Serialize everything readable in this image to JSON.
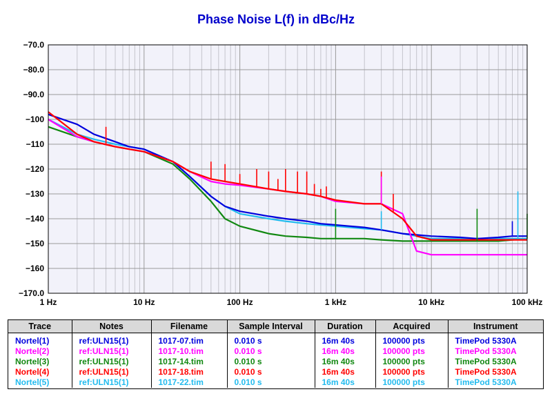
{
  "chart_data": {
    "type": "line",
    "title": "Phase Noise L(f) in dBc/Hz",
    "xscale": "log",
    "xlim": [
      1,
      100000
    ],
    "ylim": [
      -170,
      -70
    ],
    "yticks": [
      -70,
      -80,
      -90,
      -100,
      -110,
      -120,
      -130,
      -140,
      -150,
      -160,
      -170
    ],
    "ytick_labels": [
      "−70.0",
      "−80.0",
      "−90.0",
      "−100",
      "−110",
      "−120",
      "−130",
      "−140",
      "−150",
      "−160",
      "−170.0"
    ],
    "xticks": [
      1,
      10,
      100,
      1000,
      10000,
      100000
    ],
    "xtick_labels": [
      "1 Hz",
      "10 Hz",
      "100 Hz",
      "1 kHz",
      "10 kHz",
      "100 kHz"
    ],
    "grid": true,
    "series": [
      {
        "name": "Nortel(1)",
        "color": "#0000dd",
        "x": [
          1,
          2,
          3,
          5,
          7,
          10,
          20,
          30,
          50,
          70,
          100,
          200,
          300,
          500,
          700,
          1000,
          2000,
          3000,
          5000,
          7000,
          10000,
          20000,
          30000,
          50000,
          70000,
          100000
        ],
        "y": [
          -98,
          -102,
          -106,
          -109,
          -111,
          -112,
          -117,
          -123,
          -131,
          -135,
          -137,
          -139,
          -140,
          -141,
          -142,
          -142.5,
          -143.5,
          -144.5,
          -146,
          -146.5,
          -147,
          -147.5,
          -148,
          -147.5,
          -147,
          -147
        ]
      },
      {
        "name": "Nortel(2)",
        "color": "#ff00ff",
        "x": [
          1,
          2,
          3,
          5,
          7,
          10,
          20,
          30,
          50,
          70,
          100,
          200,
          300,
          500,
          700,
          1000,
          2000,
          3000,
          5000,
          7000,
          10000,
          20000,
          30000,
          50000,
          70000,
          100000
        ],
        "y": [
          -100,
          -107,
          -109,
          -111,
          -112,
          -113,
          -117,
          -121,
          -125,
          -126,
          -126.5,
          -128,
          -129,
          -130,
          -131,
          -133,
          -134,
          -134,
          -138,
          -153,
          -154.5,
          -154.5,
          -154.5,
          -154.5,
          -154.5,
          -154.5
        ]
      },
      {
        "name": "Nortel(3)",
        "color": "#118811",
        "x": [
          1,
          2,
          3,
          5,
          7,
          10,
          20,
          30,
          50,
          70,
          100,
          200,
          300,
          500,
          700,
          1000,
          2000,
          3000,
          5000,
          7000,
          10000,
          20000,
          30000,
          50000,
          70000,
          100000
        ],
        "y": [
          -103,
          -107,
          -109,
          -111,
          -112,
          -113,
          -118,
          -124,
          -133,
          -140,
          -143,
          -146,
          -147,
          -147.5,
          -148,
          -148,
          -148,
          -148.5,
          -149,
          -149,
          -149,
          -149,
          -149,
          -149,
          -148.5,
          -148
        ]
      },
      {
        "name": "Nortel(4)",
        "color": "#ff0000",
        "x": [
          1,
          2,
          3,
          5,
          7,
          10,
          20,
          30,
          50,
          70,
          100,
          200,
          300,
          500,
          700,
          1000,
          2000,
          3000,
          5000,
          7000,
          10000,
          20000,
          30000,
          50000,
          70000,
          100000
        ],
        "y": [
          -97,
          -106,
          -109,
          -111,
          -112,
          -113,
          -117,
          -121,
          -124,
          -125,
          -126,
          -128,
          -129,
          -130,
          -131,
          -132.5,
          -134,
          -134,
          -140,
          -147,
          -148.5,
          -148.5,
          -148.5,
          -148.5,
          -148.5,
          -148.5
        ]
      },
      {
        "name": "Nortel(5)",
        "color": "#22bbee",
        "x": [
          1,
          2,
          3,
          5,
          7,
          10,
          20,
          30,
          50,
          70,
          100,
          200,
          300,
          500,
          700,
          1000,
          2000,
          3000,
          5000,
          7000,
          10000,
          20000,
          30000,
          50000,
          70000,
          100000
        ],
        "y": [
          -100,
          -106,
          -108,
          -110,
          -111,
          -112,
          -117,
          -123,
          -131,
          -135,
          -138,
          -140,
          -141,
          -142,
          -142.5,
          -143,
          -144,
          -144.5,
          -146,
          -147,
          -148,
          -148,
          -148,
          -148,
          -148,
          -148
        ]
      }
    ],
    "spurs": [
      {
        "series": 3,
        "x": [
          4,
          50,
          70,
          100,
          150,
          200,
          250,
          300,
          400,
          500,
          600,
          700,
          800,
          3000,
          4000
        ],
        "y": [
          -103,
          -117,
          -118,
          -122,
          -120,
          -121,
          -124,
          -120,
          -121,
          -121,
          -126,
          -128,
          -127,
          -121,
          -130
        ]
      },
      {
        "series": 1,
        "x": [
          3000
        ],
        "y": [
          -123
        ]
      },
      {
        "series": 2,
        "x": [
          1000,
          30000,
          100000
        ],
        "y": [
          -136,
          -136,
          -138
        ]
      },
      {
        "series": 0,
        "x": [
          70000
        ],
        "y": [
          -141
        ]
      },
      {
        "series": 4,
        "x": [
          80000,
          3000
        ],
        "y": [
          -129,
          -137
        ]
      }
    ]
  },
  "legend_table": {
    "headers": [
      "Trace",
      "Notes",
      "Filename",
      "Sample Interval",
      "Duration",
      "Acquired",
      "Instrument"
    ],
    "rows": [
      {
        "color": "#0000dd",
        "cells": [
          "Nortel(1)",
          "ref:ULN15(1)",
          "1017-07.tim",
          "0.010 s",
          "16m 40s",
          "100000 pts",
          "TimePod 5330A"
        ]
      },
      {
        "color": "#ff00ff",
        "cells": [
          "Nortel(2)",
          "ref:ULN15(1)",
          "1017-10.tim",
          "0.010 s",
          "16m 40s",
          "100000 pts",
          "TimePod 5330A"
        ]
      },
      {
        "color": "#118811",
        "cells": [
          "Nortel(3)",
          "ref:ULN15(1)",
          "1017-14.tim",
          "0.010 s",
          "16m 40s",
          "100000 pts",
          "TimePod 5330A"
        ]
      },
      {
        "color": "#ff0000",
        "cells": [
          "Nortel(4)",
          "ref:ULN15(1)",
          "1017-18.tim",
          "0.010 s",
          "16m 40s",
          "100000 pts",
          "TimePod 5330A"
        ]
      },
      {
        "color": "#22bbee",
        "cells": [
          "Nortel(5)",
          "ref:ULN15(1)",
          "1017-22.tim",
          "0.010 s",
          "16m 40s",
          "100000 pts",
          "TimePod 5330A"
        ]
      }
    ]
  }
}
